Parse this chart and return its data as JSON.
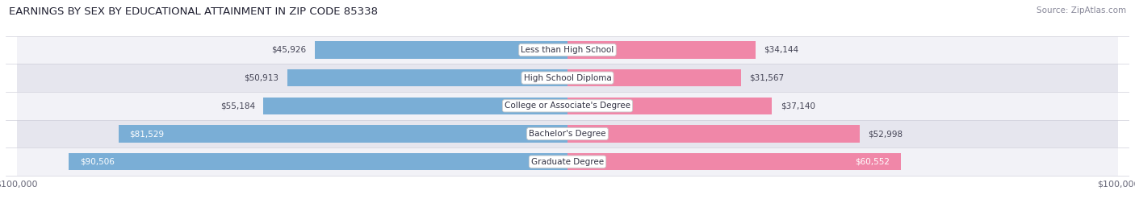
{
  "title": "EARNINGS BY SEX BY EDUCATIONAL ATTAINMENT IN ZIP CODE 85338",
  "source": "Source: ZipAtlas.com",
  "categories": [
    "Less than High School",
    "High School Diploma",
    "College or Associate's Degree",
    "Bachelor's Degree",
    "Graduate Degree"
  ],
  "male_values": [
    45926,
    50913,
    55184,
    81529,
    90506
  ],
  "female_values": [
    34144,
    31567,
    37140,
    52998,
    60552
  ],
  "male_color": "#7aaed6",
  "female_color": "#f087a8",
  "row_bg_light": "#f2f2f7",
  "row_bg_dark": "#e6e6ee",
  "max_value": 100000,
  "background_color": "#ffffff",
  "title_fontsize": 9.5,
  "source_fontsize": 7.5,
  "tick_fontsize": 8,
  "value_fontsize": 7.5,
  "category_fontsize": 7.5,
  "bar_height": 0.62
}
